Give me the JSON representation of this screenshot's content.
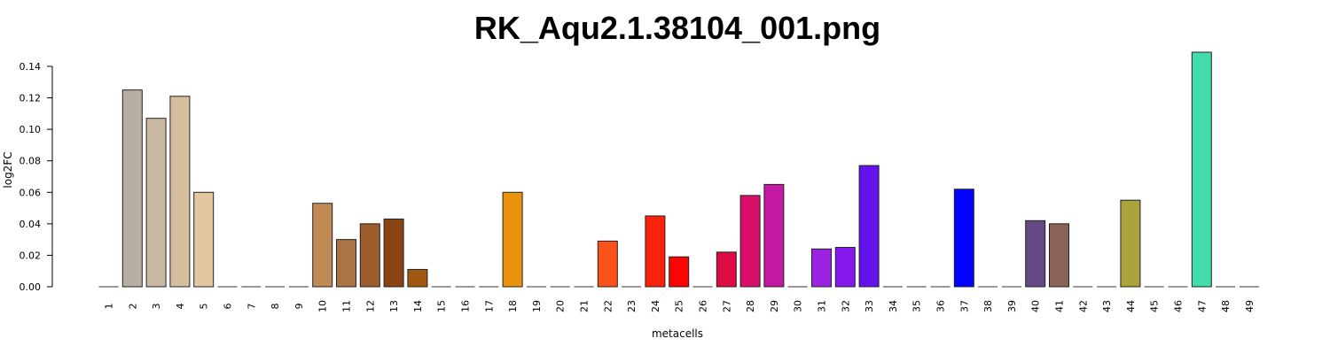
{
  "chart_data": {
    "type": "bar",
    "title": "RK_Aqu2.1.38104_001.png",
    "xlabel": "metacells",
    "ylabel": "log2FC",
    "ylim": [
      0,
      0.14
    ],
    "yticks": [
      "0.00",
      "0.02",
      "0.04",
      "0.06",
      "0.08",
      "0.10",
      "0.12",
      "0.14"
    ],
    "grid": false,
    "legend": "none",
    "categories": [
      "1",
      "2",
      "3",
      "4",
      "5",
      "6",
      "7",
      "8",
      "9",
      "10",
      "11",
      "12",
      "13",
      "14",
      "15",
      "16",
      "17",
      "18",
      "19",
      "20",
      "21",
      "22",
      "23",
      "24",
      "25",
      "26",
      "27",
      "28",
      "29",
      "30",
      "31",
      "32",
      "33",
      "34",
      "35",
      "36",
      "37",
      "38",
      "39",
      "40",
      "41",
      "42",
      "43",
      "44",
      "45",
      "46",
      "47",
      "48",
      "49"
    ],
    "values": [
      0,
      0.125,
      0.107,
      0.121,
      0.06,
      0,
      0,
      0,
      0,
      0.053,
      0.03,
      0.04,
      0.043,
      0.011,
      0,
      0,
      0,
      0.06,
      0,
      0,
      0,
      0.029,
      0,
      0.045,
      0.019,
      0,
      0.022,
      0.058,
      0.065,
      0,
      0.024,
      0.025,
      0.077,
      0,
      0,
      0,
      0.062,
      0,
      0,
      0.042,
      0.04,
      0,
      0,
      0.055,
      0,
      0,
      0.149,
      0,
      0
    ],
    "colors": [
      "#cccccc",
      "#b8afa4",
      "#c8b8a4",
      "#d5bd9f",
      "#e3c7a0",
      "#cccccc",
      "#cccccc",
      "#cccccc",
      "#cccccc",
      "#c28a57",
      "#ac7445",
      "#9c5c2c",
      "#8a4414",
      "#a05811",
      "#cccccc",
      "#cccccc",
      "#cccccc",
      "#e89410",
      "#cccccc",
      "#cccccc",
      "#cccccc",
      "#fa5218",
      "#cccccc",
      "#fb220c",
      "#fc0404",
      "#cccccc",
      "#dd0c44",
      "#d90f6a",
      "#c319a4",
      "#cccccc",
      "#9b24e4",
      "#8518ec",
      "#6513ed",
      "#cccccc",
      "#cccccc",
      "#cccccc",
      "#0303fb",
      "#cccccc",
      "#cccccc",
      "#654985",
      "#8b6259",
      "#cccccc",
      "#cccccc",
      "#aaa23a",
      "#cccccc",
      "#cccccc",
      "#42dcac",
      "#cccccc",
      "#cccccc"
    ]
  }
}
